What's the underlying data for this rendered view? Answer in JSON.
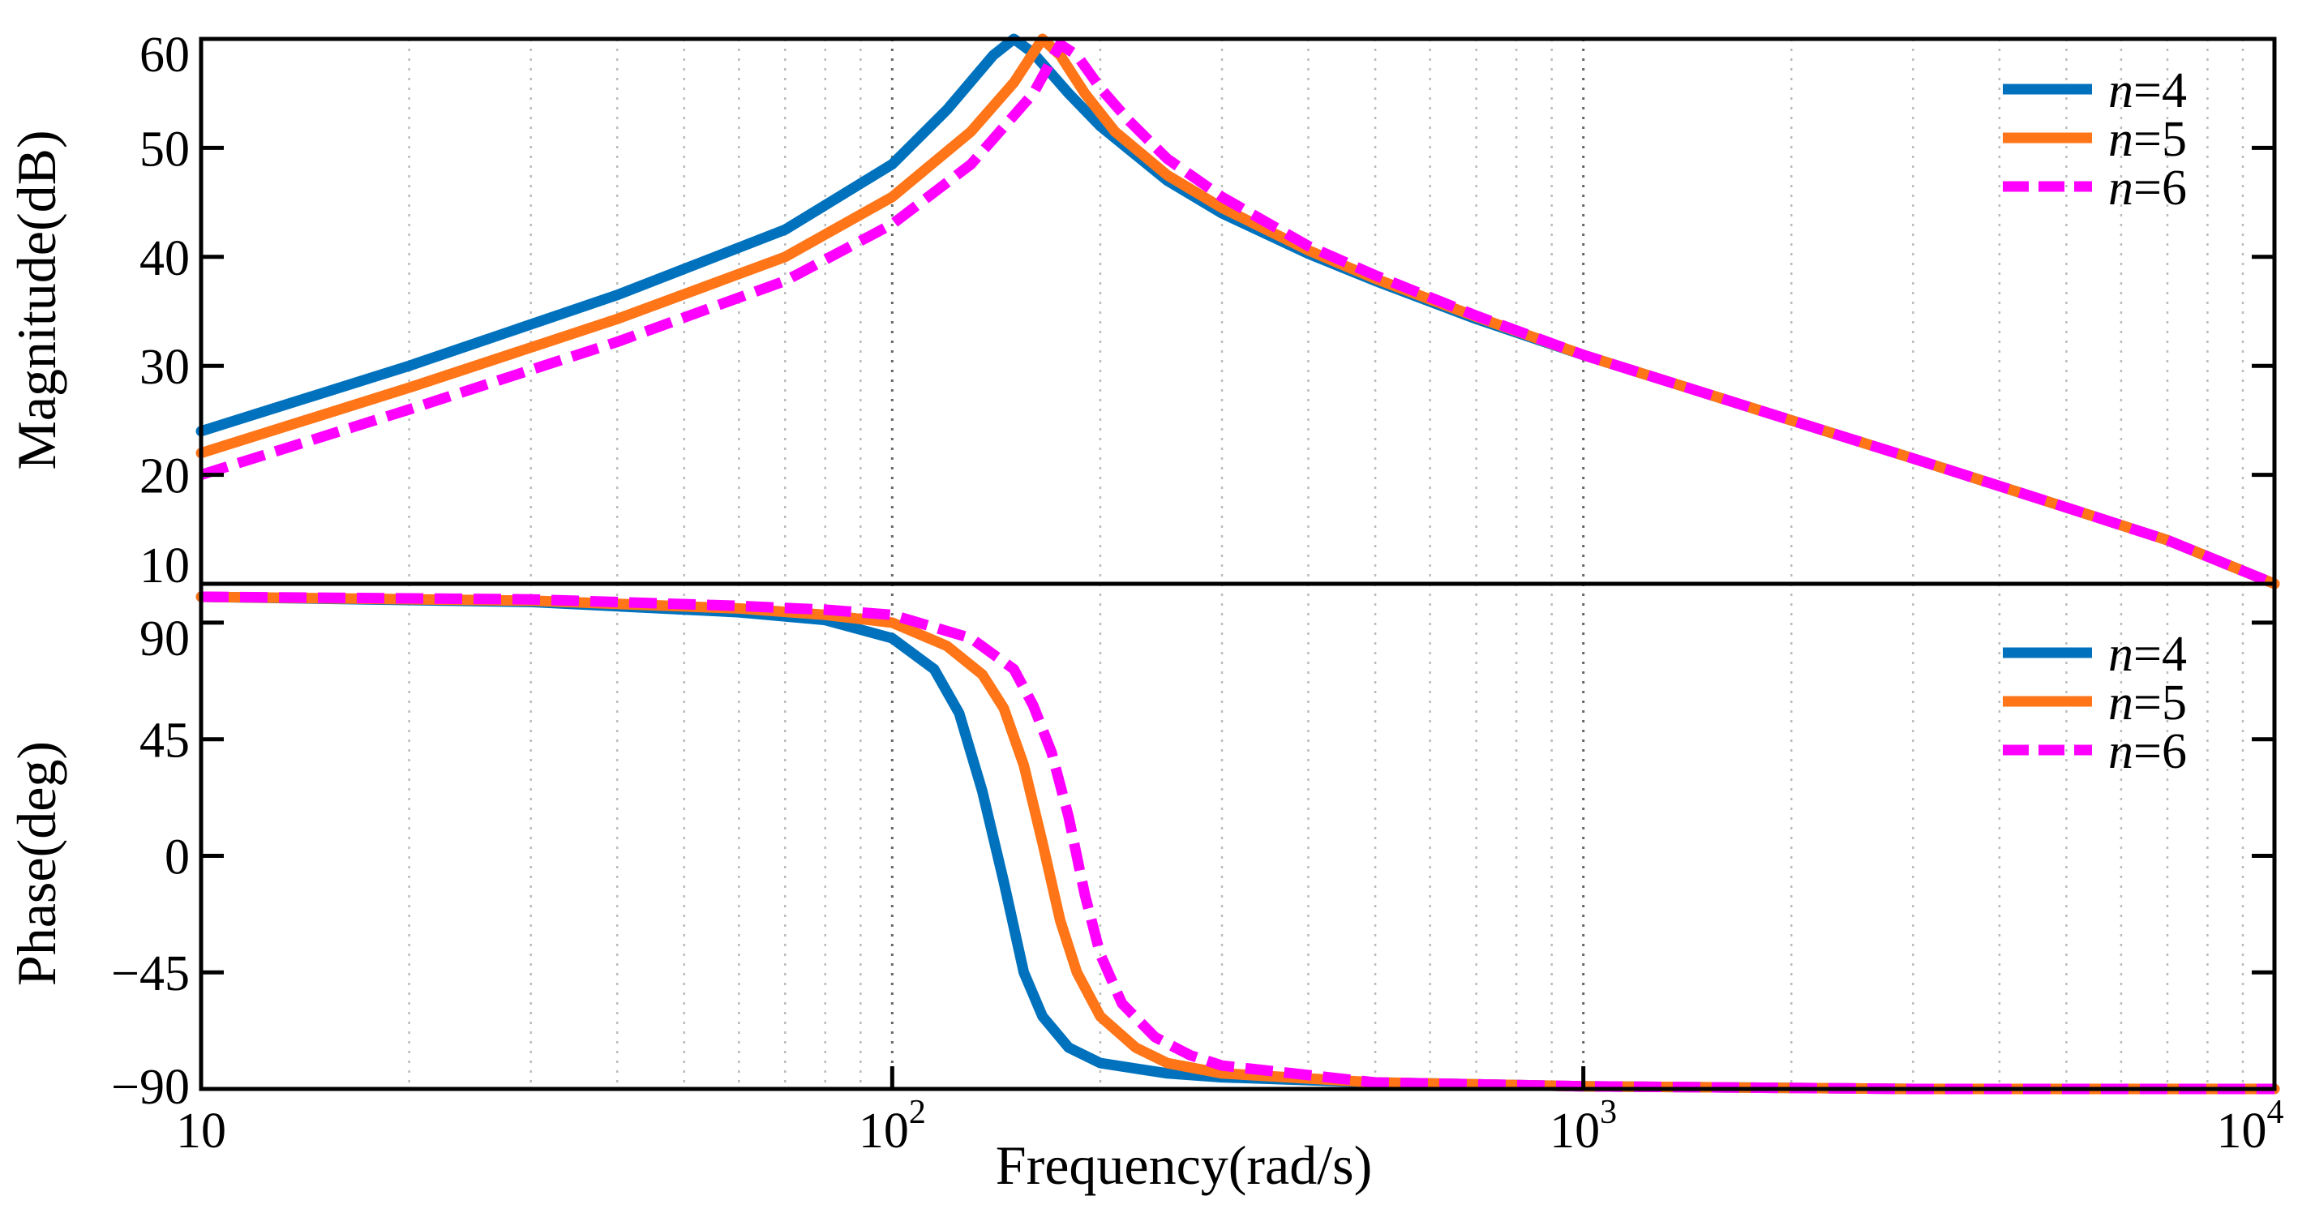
{
  "chart_data": [
    {
      "type": "line",
      "panel": "magnitude",
      "title": "",
      "xlabel": "",
      "ylabel": "Magnitude(dB)",
      "xscale": "log",
      "xlim": [
        10,
        10000
      ],
      "ylim": [
        10,
        60
      ],
      "yticks": [
        10,
        20,
        30,
        40,
        50,
        60
      ],
      "ytick_labels": [
        "10",
        "20",
        "30",
        "40",
        "50",
        "60"
      ],
      "grid": "x-only (dotted, log minor)",
      "legend_position": "top-right",
      "series": [
        {
          "name": "n=4",
          "n_label": "n",
          "value_label": "=4",
          "color": "#0072BD",
          "style": "solid",
          "x": [
            10,
            20,
            40,
            70,
            100,
            120,
            140,
            150,
            160,
            180,
            200,
            250,
            300,
            400,
            500,
            700,
            1000,
            2000,
            3000,
            5000,
            7000,
            10000
          ],
          "values": [
            24,
            30,
            36.5,
            42.5,
            48.5,
            53.5,
            58.5,
            60,
            58.7,
            55,
            52,
            47,
            44,
            40.3,
            37.8,
            34.3,
            31,
            25,
            21.5,
            17,
            14,
            10
          ]
        },
        {
          "name": "n=5",
          "n_label": "n",
          "value_label": "=5",
          "color": "#FF7518",
          "style": "solid",
          "x": [
            10,
            20,
            40,
            70,
            100,
            130,
            150,
            165,
            175,
            190,
            210,
            250,
            300,
            400,
            500,
            700,
            1000,
            2000,
            3000,
            5000,
            7000,
            10000
          ],
          "values": [
            22,
            28,
            34.3,
            40,
            45.5,
            51.5,
            56,
            60,
            58.5,
            55,
            51.5,
            47.5,
            44.5,
            40.6,
            38,
            34.5,
            31,
            25,
            21.5,
            17,
            14,
            10
          ]
        },
        {
          "name": "n=6",
          "n_label": "n",
          "value_label": "=6",
          "color": "#FF00FF",
          "style": "dashed",
          "x": [
            10,
            20,
            40,
            70,
            100,
            130,
            160,
            175,
            185,
            200,
            220,
            250,
            300,
            400,
            500,
            700,
            1000,
            2000,
            3000,
            5000,
            7000,
            10000
          ],
          "values": [
            20,
            26,
            32.2,
            37.8,
            43,
            48.5,
            55,
            59.5,
            58.5,
            55.5,
            52.5,
            49,
            45.5,
            41,
            38.3,
            34.6,
            31,
            25,
            21.5,
            17,
            14,
            10
          ]
        }
      ]
    },
    {
      "type": "line",
      "panel": "phase",
      "title": "",
      "xlabel": "Frequency(rad/s)",
      "ylabel": "Phase(deg)",
      "xscale": "log",
      "xlim": [
        10,
        10000
      ],
      "ylim": [
        -90,
        105
      ],
      "yticks": [
        -90,
        -45,
        0,
        45,
        90
      ],
      "ytick_labels": [
        "−90",
        "−45",
        "0",
        "45",
        "90"
      ],
      "xticks": [
        10,
        100,
        1000,
        10000
      ],
      "xtick_labels": [
        {
          "base": "10",
          "exp": ""
        },
        {
          "base": "10",
          "exp": "2"
        },
        {
          "base": "10",
          "exp": "3"
        },
        {
          "base": "10",
          "exp": "4"
        }
      ],
      "grid": "x-only (dotted, log minor)",
      "legend_position": "top-right",
      "series": [
        {
          "name": "n=4",
          "n_label": "n",
          "value_label": "=4",
          "color": "#0072BD",
          "style": "solid",
          "x": [
            10,
            30,
            60,
            80,
            100,
            115,
            125,
            135,
            145,
            155,
            165,
            180,
            200,
            250,
            300,
            500,
            1000,
            3000,
            10000
          ],
          "values": [
            100,
            98,
            94,
            91,
            84,
            72,
            55,
            25,
            -10,
            -45,
            -62,
            -74,
            -80,
            -84,
            -85.5,
            -87.5,
            -89,
            -90,
            -90
          ]
        },
        {
          "name": "n=5",
          "n_label": "n",
          "value_label": "=5",
          "color": "#FF7518",
          "style": "solid",
          "x": [
            10,
            30,
            60,
            80,
            100,
            120,
            135,
            145,
            155,
            165,
            175,
            185,
            200,
            225,
            250,
            300,
            500,
            1000,
            3000,
            10000
          ],
          "values": [
            100,
            98.5,
            95.5,
            93,
            90,
            81,
            70,
            57,
            35,
            5,
            -25,
            -45,
            -62,
            -74,
            -80,
            -84,
            -87.5,
            -89,
            -90,
            -90
          ]
        },
        {
          "name": "n=6",
          "n_label": "n",
          "value_label": "=6",
          "color": "#FF00FF",
          "style": "dashed",
          "x": [
            10,
            30,
            60,
            80,
            100,
            130,
            150,
            160,
            170,
            180,
            190,
            200,
            215,
            240,
            270,
            300,
            500,
            1000,
            3000,
            10000
          ],
          "values": [
            100,
            99,
            96.5,
            95,
            93,
            84,
            72,
            58,
            40,
            15,
            -15,
            -38,
            -57,
            -70,
            -77,
            -81,
            -87.5,
            -89,
            -90,
            -90
          ]
        }
      ]
    }
  ]
}
